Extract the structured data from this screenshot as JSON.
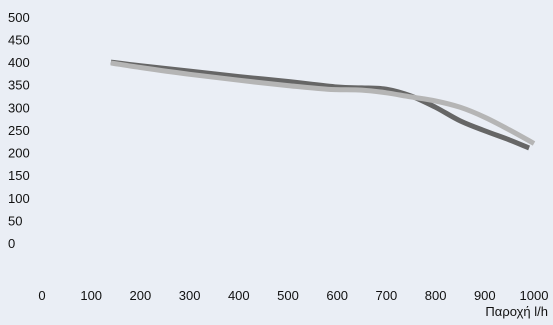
{
  "chart_data": {
    "type": "line",
    "title": "",
    "xlabel": "Παροχή l/h",
    "ylabel": "",
    "xlim": [
      0,
      1000
    ],
    "ylim": [
      0,
      500
    ],
    "x_ticks": [
      "0",
      "100",
      "200",
      "300",
      "400",
      "500",
      "600",
      "700",
      "800",
      "900",
      "1000"
    ],
    "y_ticks": [
      "0",
      "50",
      "100",
      "150",
      "200",
      "250",
      "300",
      "350",
      "400",
      "450",
      "500"
    ],
    "grid": false,
    "legend": "none",
    "series": [
      {
        "color": "#666666",
        "points": [
          [
            140,
            400
          ],
          [
            200,
            392
          ],
          [
            300,
            380
          ],
          [
            400,
            368
          ],
          [
            500,
            357
          ],
          [
            600,
            345
          ],
          [
            650,
            343
          ],
          [
            700,
            340
          ],
          [
            750,
            325
          ],
          [
            800,
            300
          ],
          [
            850,
            270
          ],
          [
            900,
            248
          ],
          [
            950,
            228
          ],
          [
            990,
            210
          ]
        ]
      },
      {
        "color": "#b5b5b5",
        "points": [
          [
            140,
            398
          ],
          [
            200,
            388
          ],
          [
            300,
            373
          ],
          [
            400,
            360
          ],
          [
            500,
            348
          ],
          [
            580,
            340
          ],
          [
            650,
            338
          ],
          [
            700,
            332
          ],
          [
            750,
            323
          ],
          [
            800,
            314
          ],
          [
            850,
            300
          ],
          [
            900,
            278
          ],
          [
            950,
            250
          ],
          [
            1000,
            220
          ]
        ]
      }
    ]
  }
}
